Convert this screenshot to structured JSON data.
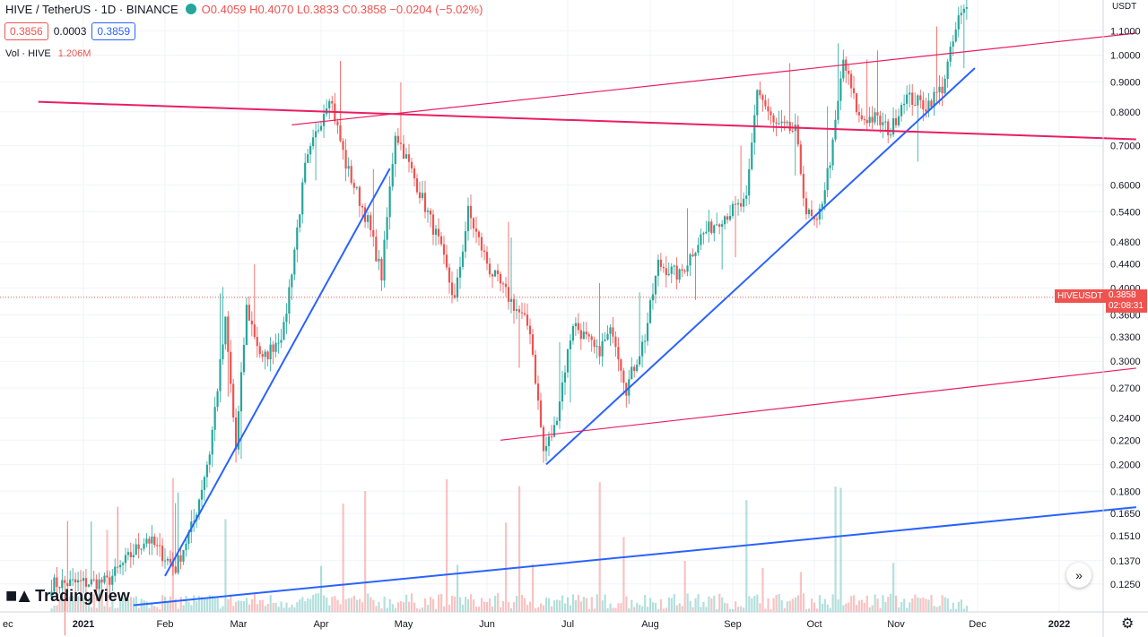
{
  "header": {
    "symbol": "HIVE / TetherUS · 1D · BINANCE",
    "open": "O0.4059",
    "high": "H0.4070",
    "low": "L0.3833",
    "close": "C0.3858",
    "change": "−0.0204 (−5.02%)"
  },
  "order_boxes": {
    "sell": "0.3856",
    "spread": "0.0003",
    "buy": "0.3859"
  },
  "volume": {
    "label": "Vol · HIVE",
    "value": "1.206M"
  },
  "branding": {
    "logo_text": "TradingView"
  },
  "axis": {
    "currency": "USDT"
  },
  "last_price": {
    "symbol_tag": "HIVEUSDT",
    "price": "0.3858",
    "countdown": "02:08:31"
  },
  "colors": {
    "up": "#26a69a",
    "down": "#ef5350",
    "trend_blue": "#2962ff",
    "channel_pink": "#e91e63"
  },
  "chart_data": {
    "type": "candlestick",
    "y_scale": "log",
    "ylim": [
      0.116,
      1.22
    ],
    "y_ticks": [
      "1.1000",
      "1.0000",
      "0.9000",
      "0.8000",
      "0.7000",
      "0.6000",
      "0.5400",
      "0.4800",
      "0.4400",
      "0.4000",
      "0.3600",
      "0.3300",
      "0.3000",
      "0.2700",
      "0.2400",
      "0.2200",
      "0.2000",
      "0.1800",
      "0.1650",
      "0.1510",
      "0.1370",
      "0.1250"
    ],
    "x_ticks": [
      "ec",
      "2021",
      "Feb",
      "Mar",
      "Apr",
      "May",
      "Jun",
      "Jul",
      "Aug",
      "Sep",
      "Oct",
      "Nov",
      "Dec",
      "2022"
    ],
    "price_path": [
      [
        "2020-12-20",
        0.125
      ],
      [
        "2021-01-10",
        0.126
      ],
      [
        "2021-01-25",
        0.15
      ],
      [
        "2021-02-05",
        0.133
      ],
      [
        "2021-02-12",
        0.16
      ],
      [
        "2021-02-18",
        0.21
      ],
      [
        "2021-02-24",
        0.35
      ],
      [
        "2021-02-28",
        0.212
      ],
      [
        "2021-03-04",
        0.37
      ],
      [
        "2021-03-10",
        0.3
      ],
      [
        "2021-03-18",
        0.34
      ],
      [
        "2021-03-26",
        0.64
      ],
      [
        "2021-04-04",
        0.86
      ],
      [
        "2021-04-10",
        0.65
      ],
      [
        "2021-04-18",
        0.52
      ],
      [
        "2021-04-23",
        0.42
      ],
      [
        "2021-04-28",
        0.74
      ],
      [
        "2021-05-06",
        0.6
      ],
      [
        "2021-05-14",
        0.48
      ],
      [
        "2021-05-20",
        0.38
      ],
      [
        "2021-05-25",
        0.54
      ],
      [
        "2021-06-02",
        0.43
      ],
      [
        "2021-06-10",
        0.38
      ],
      [
        "2021-06-17",
        0.34
      ],
      [
        "2021-06-22",
        0.21
      ],
      [
        "2021-06-26",
        0.23
      ],
      [
        "2021-07-03",
        0.35
      ],
      [
        "2021-07-12",
        0.31
      ],
      [
        "2021-07-18",
        0.34
      ],
      [
        "2021-07-23",
        0.27
      ],
      [
        "2021-07-30",
        0.33
      ],
      [
        "2021-08-04",
        0.44
      ],
      [
        "2021-08-12",
        0.42
      ],
      [
        "2021-08-20",
        0.49
      ],
      [
        "2021-08-28",
        0.53
      ],
      [
        "2021-09-06",
        0.56
      ],
      [
        "2021-09-10",
        0.88
      ],
      [
        "2021-09-16",
        0.76
      ],
      [
        "2021-09-24",
        0.74
      ],
      [
        "2021-09-28",
        0.54
      ],
      [
        "2021-10-02",
        0.51
      ],
      [
        "2021-10-08",
        0.7
      ],
      [
        "2021-10-12",
        0.98
      ],
      [
        "2021-10-18",
        0.78
      ],
      [
        "2021-10-24",
        0.78
      ],
      [
        "2021-10-30",
        0.74
      ],
      [
        "2021-11-04",
        0.85
      ],
      [
        "2021-11-12",
        0.82
      ],
      [
        "2021-11-18",
        0.88
      ],
      [
        "2021-11-24",
        1.15
      ],
      [
        "2021-11-27",
        1.2
      ]
    ],
    "trend_lines": [
      {
        "color": "trend_blue",
        "from": [
          "2021-02-01",
          0.129
        ],
        "to": [
          "2021-04-26",
          0.64
        ]
      },
      {
        "color": "trend_blue",
        "from": [
          "2021-06-23",
          0.2
        ],
        "to": [
          "2021-11-30",
          0.95
        ]
      },
      {
        "color": "trend_blue",
        "from": [
          "2021-01-20",
          0.115
        ],
        "to": [
          "2022-01-30",
          0.169
        ]
      },
      {
        "color": "channel_pink",
        "from": [
          "2020-12-15",
          0.832
        ],
        "to": [
          "2022-01-30",
          0.718
        ]
      },
      {
        "color": "channel_pink",
        "from": [
          "2021-03-21",
          0.76
        ],
        "to": [
          "2022-01-30",
          1.09
        ]
      },
      {
        "color": "channel_pink",
        "from": [
          "2021-06-06",
          0.22
        ],
        "to": [
          "2022-01-30",
          0.292
        ]
      }
    ],
    "last_price_line": 0.3858
  }
}
